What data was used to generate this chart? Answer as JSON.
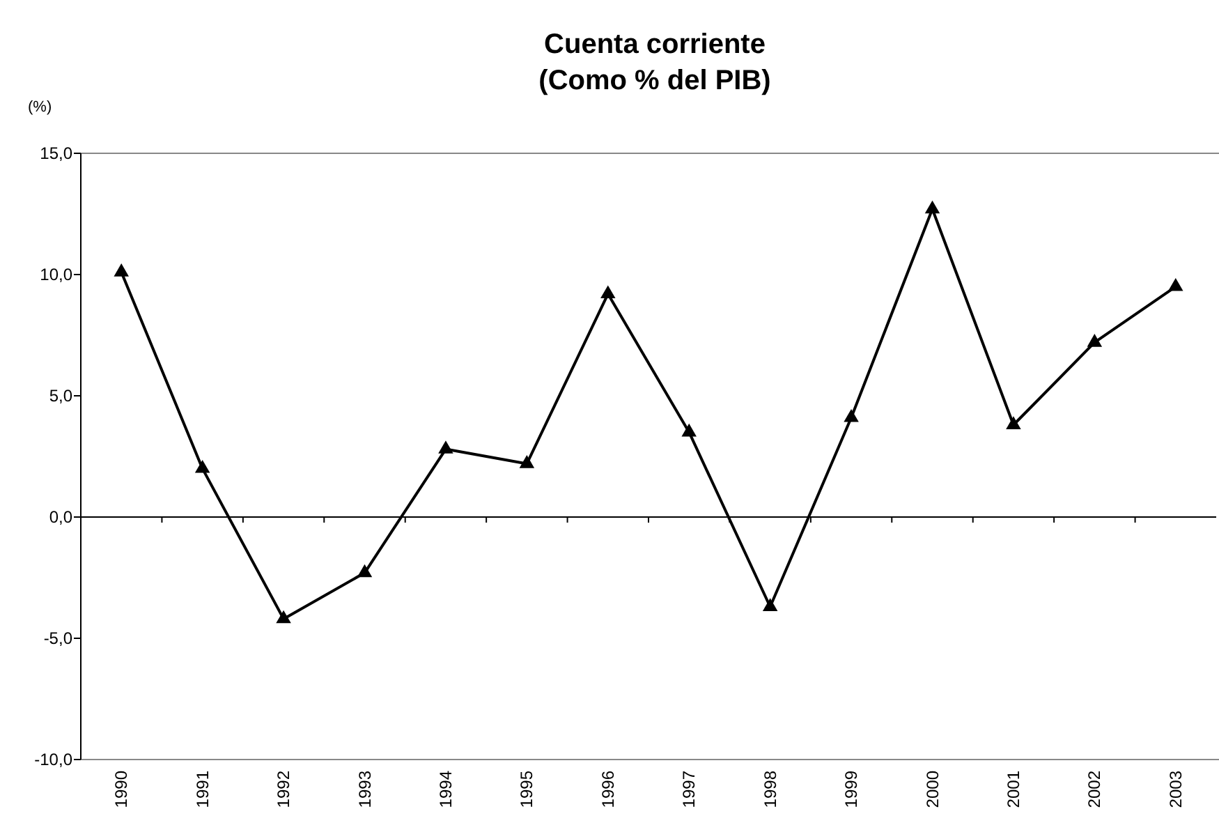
{
  "chart_data": {
    "type": "line",
    "title": "Cuenta corriente",
    "subtitle": "(Como % del PIB)",
    "ylabel": "(%)",
    "categories": [
      "1990",
      "1991",
      "1992",
      "1993",
      "1994",
      "1995",
      "1996",
      "1997",
      "1998",
      "1999",
      "2000",
      "2001",
      "2002",
      "2003"
    ],
    "series": [
      {
        "color": "#000000",
        "values": [
          10.1,
          2.0,
          -4.2,
          -2.3,
          2.8,
          2.2,
          9.2,
          3.5,
          -3.7,
          4.1,
          12.7,
          3.8,
          7.2,
          9.5
        ]
      }
    ],
    "ylim": [
      -10,
      15
    ],
    "yticks": [
      {
        "value": -10,
        "label": "-10,0"
      },
      {
        "value": -5,
        "label": "-5,0"
      },
      {
        "value": 0,
        "label": "0,0"
      },
      {
        "value": 5,
        "label": "5,0"
      },
      {
        "value": 10,
        "label": "10,0"
      },
      {
        "value": 15,
        "label": "15,0"
      }
    ],
    "marker": "triangle",
    "line_style": "solid"
  }
}
